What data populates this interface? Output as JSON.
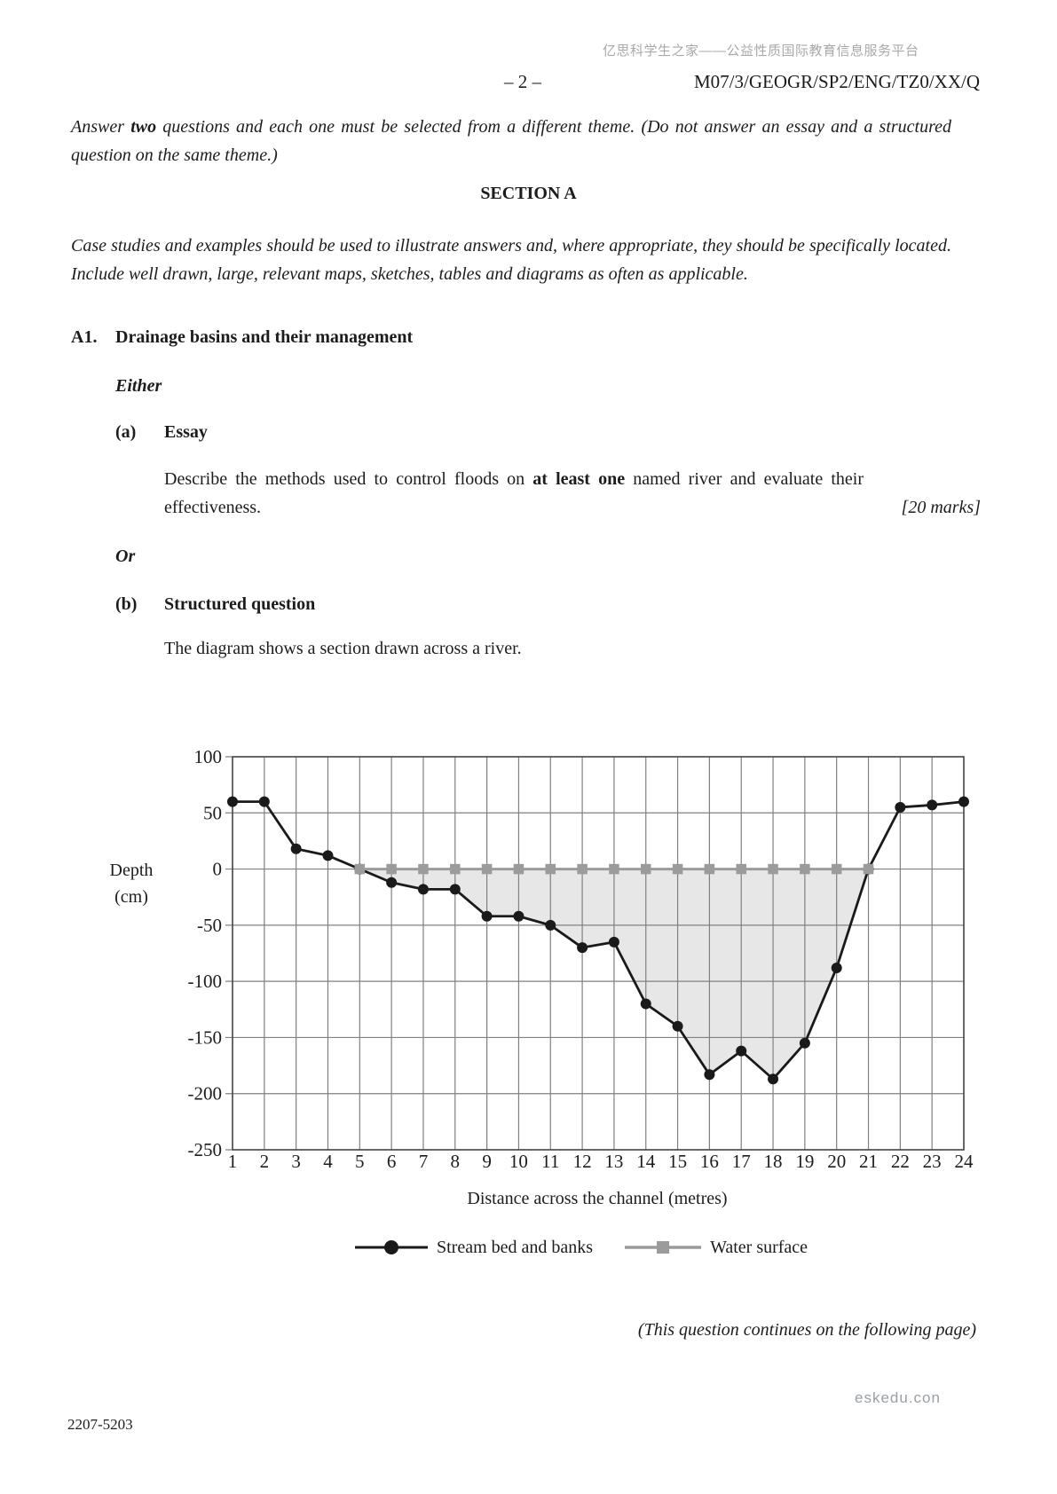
{
  "header": {
    "watermark_cn": "亿思科学生之家——公益性质国际教育信息服务平台",
    "page_number": "– 2 –",
    "paper_code": "M07/3/GEOGR/SP2/ENG/TZ0/XX/Q"
  },
  "instructions": {
    "pre": "Answer ",
    "bold": "two",
    "post": " questions and each one must be selected from a different theme.  (Do not answer an essay and a structured question on the same theme.)"
  },
  "section": {
    "title": "SECTION A",
    "note": "Case studies and examples should be used to illustrate answers and, where appropriate, they should be specifically located.  Include well drawn, large, relevant maps, sketches, tables and diagrams as often as applicable."
  },
  "question": {
    "number": "A1.",
    "title": "Drainage basins and their management",
    "either_label": "Either",
    "part_a": {
      "label": "(a)",
      "heading": "Essay",
      "text_pre": "Describe the methods used to control floods on ",
      "text_bold": "at least one",
      "text_post": " named river and evaluate their effectiveness.",
      "marks": "[20 marks]"
    },
    "or_label": "Or",
    "part_b": {
      "label": "(b)",
      "heading": "Structured question",
      "intro": "The diagram shows a section drawn across a river."
    }
  },
  "chart_data": {
    "type": "line",
    "xlabel": "Distance across the channel (metres)",
    "ylabel": "Depth (cm)",
    "ylabel_lines": [
      "Depth",
      "(cm)"
    ],
    "xlim": [
      1,
      24
    ],
    "ylim": [
      -250,
      100
    ],
    "yticks": [
      100,
      50,
      0,
      -50,
      -100,
      -150,
      -200,
      -250
    ],
    "grid": true,
    "fill_color": "#e7e7e7",
    "grid_color": "#808080",
    "frame_color": "#4a4a4a",
    "series": [
      {
        "name": "Stream bed and banks",
        "marker": "circle",
        "color": "#1a1a1a",
        "x": [
          1,
          2,
          3,
          4,
          5,
          6,
          7,
          8,
          9,
          10,
          11,
          12,
          13,
          14,
          15,
          16,
          17,
          18,
          19,
          20,
          21,
          22,
          23,
          24
        ],
        "values": [
          60,
          60,
          18,
          12,
          0,
          -12,
          -18,
          -18,
          -42,
          -42,
          -50,
          -70,
          -65,
          -120,
          -140,
          -183,
          -162,
          -187,
          -155,
          -88,
          0,
          55,
          57,
          60
        ]
      },
      {
        "name": "Water surface",
        "marker": "square",
        "color": "#9b9b9b",
        "x": [
          5,
          6,
          7,
          8,
          9,
          10,
          11,
          12,
          13,
          14,
          15,
          16,
          17,
          18,
          19,
          20,
          21
        ],
        "values": [
          0,
          0,
          0,
          0,
          0,
          0,
          0,
          0,
          0,
          0,
          0,
          0,
          0,
          0,
          0,
          0,
          0
        ]
      }
    ],
    "fill_between_series": [
      1,
      0
    ]
  },
  "footer": {
    "continues_note": "(This question continues on the following page)",
    "doc_code": "2207-5203",
    "watermark": "eskedu.con"
  }
}
